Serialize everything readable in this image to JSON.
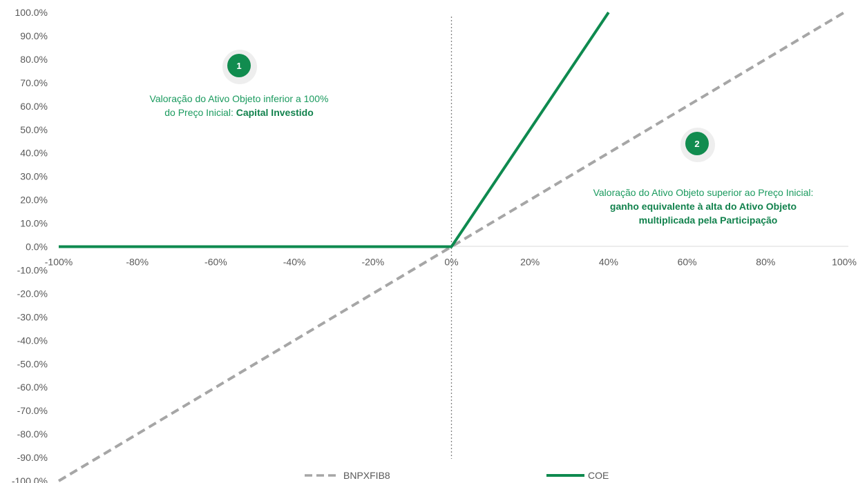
{
  "chart_data": {
    "type": "line",
    "x": [
      -1.0,
      -0.8,
      -0.6,
      -0.4,
      -0.2,
      0.0,
      0.2,
      0.4,
      0.6,
      0.8,
      1.0
    ],
    "xlim": [
      -1.0,
      1.0
    ],
    "ylim": [
      -1.0,
      1.0
    ],
    "x_ticks": [
      "-100%",
      "-80%",
      "-60%",
      "-40%",
      "-20%",
      "0%",
      "20%",
      "40%",
      "60%",
      "80%",
      "100%"
    ],
    "y_ticks": [
      "100.0%",
      "90.0%",
      "80.0%",
      "70.0%",
      "60.0%",
      "50.0%",
      "40.0%",
      "30.0%",
      "20.0%",
      "10.0%",
      "0.0%",
      "-10.0%",
      "-20.0%",
      "-30.0%",
      "-40.0%",
      "-50.0%",
      "-60.0%",
      "-70.0%",
      "-80.0%",
      "-90.0%",
      "-100.0%"
    ],
    "series": [
      {
        "name": "BNPXFIB8",
        "style": "dashed",
        "color": "#a6a6a6",
        "points": [
          [
            -1.0,
            -1.0
          ],
          [
            1.0,
            1.0
          ]
        ]
      },
      {
        "name": "COE",
        "style": "solid",
        "color": "#0e8a4f",
        "points": [
          [
            -1.0,
            0.0
          ],
          [
            0.0,
            0.0
          ],
          [
            0.4,
            1.0
          ]
        ]
      }
    ],
    "vertical_reference_line_x": 0.0,
    "legend_position": "bottom",
    "grid": false,
    "annotations": [
      {
        "badge": "1",
        "line1": "Valoração do Ativo Objeto inferior a 100%",
        "line2_plain": "do Preço Inicial: ",
        "line2_bold": "Capital Investido"
      },
      {
        "badge": "2",
        "line1": "Valoração do Ativo Objeto superior ao Preço Inicial:",
        "line2_bold": "ganho equivalente à alta do Ativo Objeto",
        "line3_bold": "multiplicada pela Participação"
      }
    ]
  }
}
